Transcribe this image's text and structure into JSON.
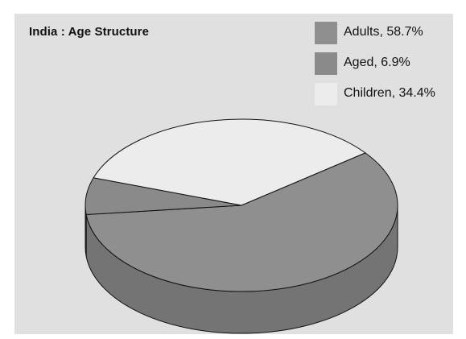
{
  "chart_data": {
    "type": "pie",
    "title": "India : Age Structure",
    "slices": [
      {
        "label": "Adults",
        "value": 58.7,
        "color": "#8f8f8f",
        "side_color": "#747474",
        "legend": "Adults, 58.7%"
      },
      {
        "label": "Aged",
        "value": 6.9,
        "color": "#8a8a8a",
        "side_color": "#6a6a6a",
        "legend": "Aged, 6.9%"
      },
      {
        "label": "Children",
        "value": 34.4,
        "color": "#ececec",
        "side_color": "#c4c4c4",
        "legend": "Children, 34.4%"
      }
    ],
    "legend_position": "top-right",
    "three_d": true
  }
}
